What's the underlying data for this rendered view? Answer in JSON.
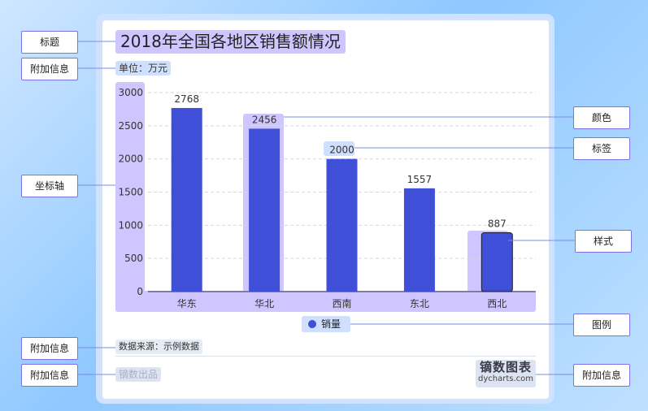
{
  "title": "2018年全国各地区销售额情况",
  "unit_label": "单位：万元",
  "source_label": "数据来源：示例数据",
  "brand_text": "镝数出品",
  "logo": {
    "line1": "镝数图表",
    "line2": "dycharts.com"
  },
  "legend": {
    "label": "销量",
    "color": "#3f4fd8"
  },
  "callouts": {
    "title": "标题",
    "extra1": "附加信息",
    "axis": "坐标轴",
    "extra2": "附加信息",
    "extra3": "附加信息",
    "color": "颜色",
    "label": "标签",
    "style": "样式",
    "legend": "图例",
    "extra4": "附加信息"
  },
  "colors": {
    "bar": "#3f4fd8",
    "highlight": "#cfc6ff",
    "callout_border": "#7b74e6",
    "guide_line": "#7b8ce0"
  },
  "chart_data": {
    "type": "bar",
    "title": "2018年全国各地区销售额情况",
    "categories": [
      "华东",
      "华北",
      "西南",
      "东北",
      "西北"
    ],
    "series": [
      {
        "name": "销量",
        "values": [
          2768,
          2456,
          2000,
          1557,
          887
        ]
      }
    ],
    "ylabel": "单位：万元",
    "ylim": [
      0,
      3000
    ],
    "yticks": [
      0,
      500,
      1000,
      1500,
      2000,
      2500,
      3000
    ],
    "grid": true,
    "legend_position": "bottom-center"
  }
}
